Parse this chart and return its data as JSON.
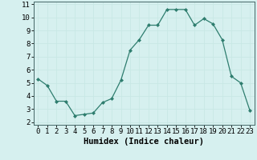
{
  "x": [
    0,
    1,
    2,
    3,
    4,
    5,
    6,
    7,
    8,
    9,
    10,
    11,
    12,
    13,
    14,
    15,
    16,
    17,
    18,
    19,
    20,
    21,
    22,
    23
  ],
  "y": [
    5.3,
    4.8,
    3.6,
    3.6,
    2.5,
    2.6,
    2.7,
    3.5,
    3.8,
    5.2,
    7.5,
    8.3,
    9.4,
    9.4,
    10.6,
    10.6,
    10.6,
    9.4,
    9.9,
    9.5,
    8.3,
    5.5,
    5.0,
    2.9
  ],
  "line_color": "#2e7d6e",
  "marker_color": "#2e7d6e",
  "bg_color": "#d6f0ef",
  "grid_color": "#c8e8e5",
  "xlabel": "Humidex (Indice chaleur)",
  "xlim": [
    -0.5,
    23.5
  ],
  "ylim": [
    1.8,
    11.2
  ],
  "yticks": [
    2,
    3,
    4,
    5,
    6,
    7,
    8,
    9,
    10,
    11
  ],
  "xticks": [
    0,
    1,
    2,
    3,
    4,
    5,
    6,
    7,
    8,
    9,
    10,
    11,
    12,
    13,
    14,
    15,
    16,
    17,
    18,
    19,
    20,
    21,
    22,
    23
  ],
  "label_fontsize": 7.5,
  "tick_fontsize": 6.5
}
